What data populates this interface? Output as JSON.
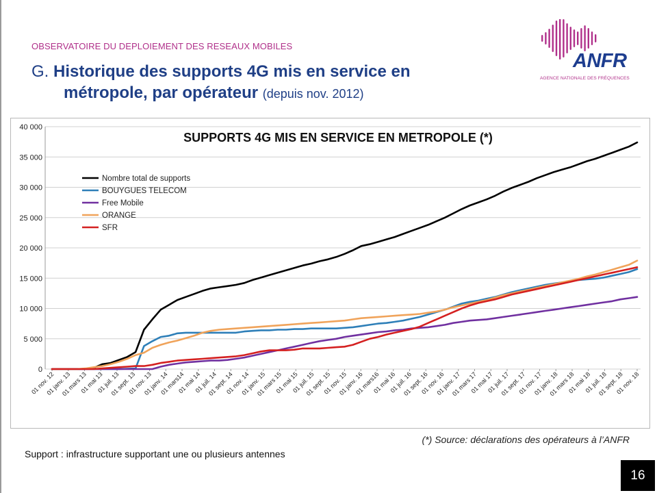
{
  "header": {
    "eyebrow": "OBSERVATOIRE DU DEPLOIEMENT DES RESEAUX MOBILES",
    "title_prefix": "G.",
    "title_line1": "Historique des supports 4G mis en service en",
    "title_line2": "métropole, par opérateur",
    "title_sub": "(depuis nov. 2012)"
  },
  "logo": {
    "name": "ANFR",
    "tagline": "AGENCE NATIONALE DES FRÉQUENCES",
    "icon": "anfr-wave-logo",
    "colors": [
      "#b0308a",
      "#1d3d8f"
    ]
  },
  "source_note": "(*) Source: déclarations des opérateurs à l’ANFR",
  "footnote": "Support : infrastructure supportant une ou plusieurs antennes",
  "page_number": "16",
  "chart_data": {
    "type": "line",
    "title": "SUPPORTS 4G MIS EN SERVICE EN METROPOLE (*)",
    "xlabel": "",
    "ylabel": "",
    "ylim": [
      0,
      40000
    ],
    "yticks": [
      0,
      5000,
      10000,
      15000,
      20000,
      25000,
      30000,
      35000,
      40000
    ],
    "ytick_labels": [
      "0",
      "5 000",
      "10 000",
      "15 000",
      "20 000",
      "25 000",
      "30 000",
      "35 000",
      "40 000"
    ],
    "x_tick_labels": [
      "01 nov. 12",
      "01 janv. 13",
      "01 mars 13",
      "01 mai 13",
      "01 juil. 13",
      "01 sept. 13",
      "01 nov. 13",
      "01 janv. 14",
      "01 mars14",
      "01 mai 14",
      "01 juil. 14",
      "01 sept. 14",
      "01 nov. 14",
      "01 janv. 15",
      "01 mars 15",
      "01 mai 15",
      "01 juil. 15",
      "01 sept. 15",
      "01 nov. 15",
      "01 janv. 16",
      "01 mars16",
      "01 mai 16",
      "01 juil. 16",
      "01 sept. 16",
      "01 nov. 16",
      "01 janv. 17",
      "01 mars 17",
      "01 mai 17",
      "01 juil. 17",
      "01 sept. 17",
      "01 nov. 17",
      "01 janv. 18",
      "01 mars 18",
      "01 mai 18",
      "01 juil. 18",
      "01 sept. 18",
      "01 nov. 18"
    ],
    "grid": "horizontal",
    "legend_placement": "top-left",
    "series": [
      {
        "name": "Nombre total de supports",
        "color": "#000000",
        "values": [
          0,
          0,
          0,
          0,
          50,
          200,
          800,
          1000,
          1500,
          2000,
          2800,
          6500,
          8200,
          9800,
          10600,
          11400,
          11900,
          12400,
          12900,
          13300,
          13500,
          13700,
          13900,
          14200,
          14700,
          15100,
          15500,
          15900,
          16300,
          16700,
          17100,
          17400,
          17800,
          18100,
          18500,
          19000,
          19600,
          20300,
          20600,
          21000,
          21400,
          21800,
          22300,
          22800,
          23300,
          23800,
          24400,
          25000,
          25700,
          26400,
          27000,
          27500,
          28000,
          28600,
          29300,
          29900,
          30400,
          30900,
          31500,
          32000,
          32500,
          32900,
          33300,
          33800,
          34300,
          34700,
          35200,
          35700,
          36200,
          36700,
          37400
        ]
      },
      {
        "name": "BOUYGUES TELECOM",
        "color": "#2e7fb8",
        "values": [
          0,
          0,
          0,
          0,
          0,
          0,
          0,
          0,
          0,
          50,
          100,
          3800,
          4600,
          5300,
          5500,
          5900,
          6000,
          6000,
          6000,
          6000,
          6000,
          6000,
          6000,
          6200,
          6300,
          6400,
          6400,
          6500,
          6500,
          6600,
          6600,
          6700,
          6700,
          6700,
          6700,
          6800,
          6900,
          7100,
          7300,
          7500,
          7600,
          7800,
          8000,
          8300,
          8600,
          9000,
          9400,
          9800,
          10300,
          10800,
          11100,
          11300,
          11600,
          11900,
          12300,
          12700,
          13000,
          13300,
          13600,
          13900,
          14100,
          14300,
          14500,
          14700,
          14800,
          14900,
          15100,
          15400,
          15700,
          16000,
          16500
        ]
      },
      {
        "name": "Free Mobile",
        "color": "#7030a0",
        "values": [
          0,
          0,
          0,
          0,
          0,
          0,
          0,
          0,
          0,
          0,
          0,
          0,
          0,
          400,
          700,
          900,
          1100,
          1200,
          1300,
          1400,
          1400,
          1500,
          1700,
          1900,
          2200,
          2500,
          2800,
          3100,
          3400,
          3700,
          4000,
          4300,
          4600,
          4800,
          5000,
          5300,
          5500,
          5700,
          5900,
          6100,
          6200,
          6400,
          6500,
          6700,
          6800,
          6900,
          7100,
          7300,
          7600,
          7800,
          8000,
          8100,
          8200,
          8400,
          8600,
          8800,
          9000,
          9200,
          9400,
          9600,
          9800,
          10000,
          10200,
          10400,
          10600,
          10800,
          11000,
          11200,
          11500,
          11700,
          11900
        ]
      },
      {
        "name": "ORANGE",
        "color": "#f0a35a",
        "values": [
          0,
          0,
          0,
          0,
          100,
          300,
          500,
          800,
          1200,
          1700,
          2300,
          2700,
          3500,
          4000,
          4400,
          4700,
          5100,
          5500,
          6000,
          6300,
          6500,
          6600,
          6700,
          6800,
          6900,
          7000,
          7100,
          7200,
          7300,
          7400,
          7500,
          7600,
          7700,
          7800,
          7900,
          8000,
          8200,
          8400,
          8500,
          8600,
          8700,
          8800,
          8900,
          9000,
          9100,
          9300,
          9500,
          9800,
          10200,
          10500,
          10800,
          11100,
          11400,
          11800,
          12200,
          12500,
          12800,
          13100,
          13400,
          13700,
          14000,
          14300,
          14600,
          14900,
          15300,
          15600,
          16000,
          16400,
          16800,
          17200,
          17900
        ]
      },
      {
        "name": "SFR",
        "color": "#d42020",
        "values": [
          0,
          0,
          0,
          0,
          0,
          0,
          100,
          200,
          300,
          400,
          500,
          500,
          700,
          1000,
          1200,
          1400,
          1500,
          1600,
          1700,
          1800,
          1900,
          2000,
          2100,
          2300,
          2600,
          2900,
          3100,
          3100,
          3100,
          3200,
          3400,
          3400,
          3400,
          3500,
          3600,
          3700,
          4000,
          4500,
          5000,
          5300,
          5700,
          6000,
          6300,
          6600,
          7000,
          7600,
          8200,
          8800,
          9400,
          10000,
          10500,
          10900,
          11200,
          11500,
          11900,
          12300,
          12600,
          12900,
          13200,
          13500,
          13800,
          14100,
          14400,
          14700,
          15000,
          15300,
          15600,
          15900,
          16200,
          16500,
          16800
        ]
      }
    ]
  }
}
